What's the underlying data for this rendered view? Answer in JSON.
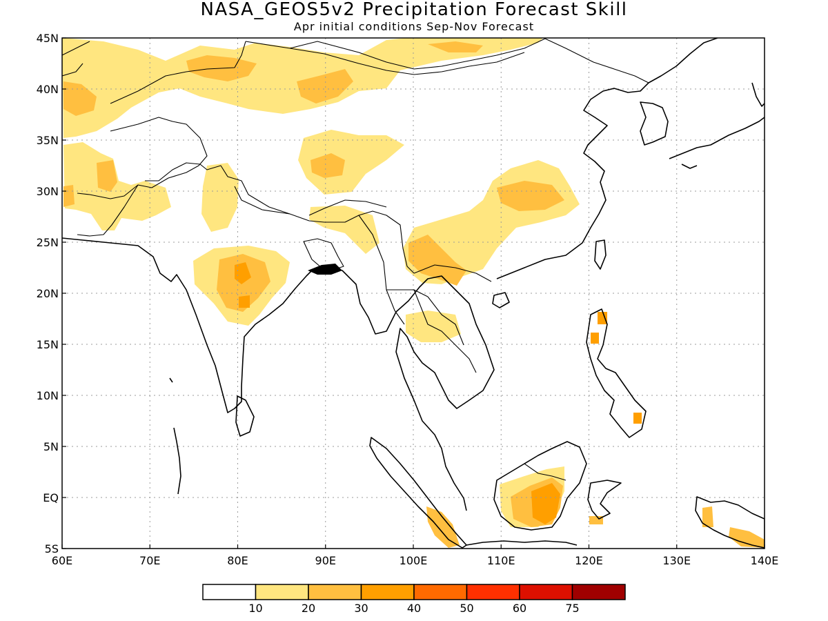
{
  "title": "NASA_GEOS5v2 Precipitation Forecast Skill",
  "subtitle": "Apr initial conditions   Sep-Nov Forecast",
  "map": {
    "lon_range": [
      60,
      140
    ],
    "lat_range": [
      -5,
      45
    ],
    "lon_ticks": [
      "60E",
      "70E",
      "80E",
      "90E",
      "100E",
      "110E",
      "120E",
      "130E",
      "140E"
    ],
    "lat_ticks": [
      "45N",
      "40N",
      "35N",
      "30N",
      "25N",
      "20N",
      "15N",
      "10N",
      "5N",
      "EQ",
      "5S"
    ],
    "grid": true
  },
  "colorbar": {
    "bin_colors": [
      "#ffffff",
      "#ffe680",
      "#ffbf40",
      "#ff9f00",
      "#ff6a00",
      "#ff3000",
      "#dd1000",
      "#a00000"
    ],
    "labels": [
      "10",
      "20",
      "30",
      "40",
      "50",
      "60",
      "75"
    ]
  },
  "skill_regions": [
    {
      "name": "central-asia-north",
      "level": 1
    },
    {
      "name": "kazakh-core",
      "level": 2
    },
    {
      "name": "afghan-iran",
      "level": 1
    },
    {
      "name": "afghan-iran-core",
      "level": 2
    },
    {
      "name": "tibet-west",
      "level": 1
    },
    {
      "name": "tibet-core",
      "level": 2
    },
    {
      "name": "central-india",
      "level": 1
    },
    {
      "name": "central-india-core",
      "level": 2
    },
    {
      "name": "central-india-max",
      "level": 3
    },
    {
      "name": "china-sw",
      "level": 1
    },
    {
      "name": "china-central-core",
      "level": 2
    },
    {
      "name": "yunnan-core",
      "level": 2
    },
    {
      "name": "borneo",
      "level": 1
    },
    {
      "name": "borneo-core",
      "level": 2
    },
    {
      "name": "borneo-max",
      "level": 3
    },
    {
      "name": "sumatra-south",
      "level": 2
    },
    {
      "name": "philippines-luzon",
      "level": 3
    },
    {
      "name": "new-guinea",
      "level": 2
    }
  ]
}
